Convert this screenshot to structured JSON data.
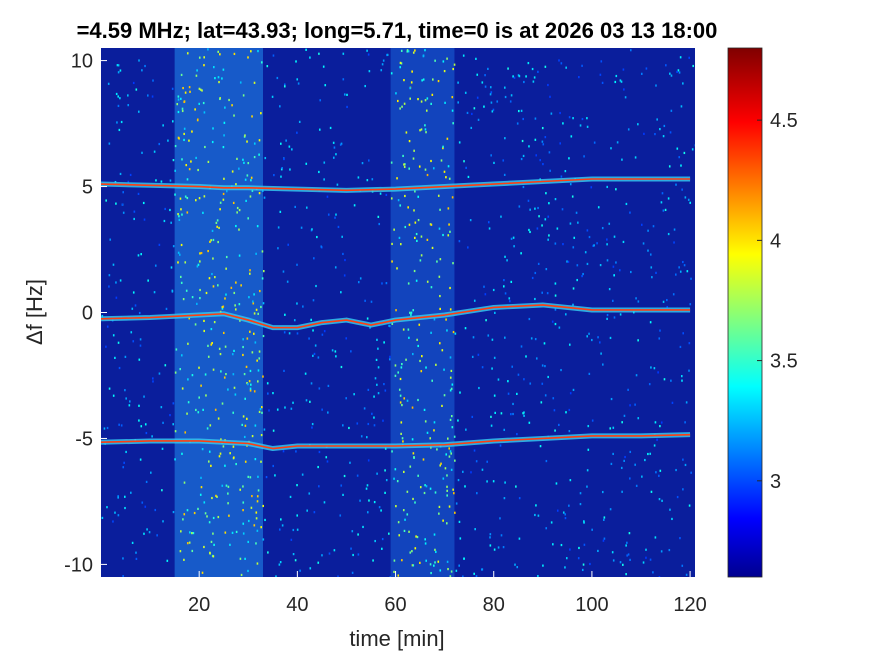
{
  "chart_data": {
    "type": "heatmap",
    "title": "=4.59 MHz;  lat=43.93; long=5.71, time=0 is at 2026 03 13 18:00",
    "xlabel": "time [min]",
    "ylabel": "Δf [Hz]",
    "xlim": [
      0,
      121
    ],
    "ylim": [
      -10.5,
      10.5
    ],
    "x_ticks": [
      20,
      40,
      60,
      80,
      100,
      120
    ],
    "y_ticks": [
      -10,
      -5,
      0,
      5,
      10
    ],
    "grid": false,
    "colormap": "jet",
    "colorbar": {
      "range": [
        2.6,
        4.8
      ],
      "ticks": [
        3,
        3.5,
        4,
        4.5
      ],
      "tick_labels": [
        "3",
        "3.5",
        "4",
        "4.5"
      ]
    },
    "background_color": "#0a1e9c",
    "bright_time_bands_min": [
      [
        15,
        33
      ],
      [
        59,
        72
      ]
    ],
    "traces": [
      {
        "time_min": [
          0,
          10,
          20,
          25,
          30,
          40,
          50,
          60,
          70,
          80,
          90,
          100,
          110,
          120
        ],
        "df_hz": [
          5.1,
          5.05,
          5.0,
          4.95,
          4.95,
          4.9,
          4.85,
          4.9,
          5.0,
          5.1,
          5.2,
          5.3,
          5.3,
          5.3
        ]
      },
      {
        "time_min": [
          0,
          10,
          20,
          25,
          30,
          35,
          40,
          45,
          50,
          55,
          60,
          70,
          80,
          90,
          100,
          110,
          120
        ],
        "df_hz": [
          -0.25,
          -0.2,
          -0.1,
          -0.05,
          -0.3,
          -0.6,
          -0.6,
          -0.4,
          -0.3,
          -0.5,
          -0.3,
          -0.1,
          0.2,
          0.3,
          0.1,
          0.1,
          0.1
        ]
      },
      {
        "time_min": [
          0,
          10,
          20,
          30,
          35,
          40,
          50,
          60,
          70,
          80,
          90,
          100,
          110,
          120
        ],
        "df_hz": [
          -5.15,
          -5.1,
          -5.1,
          -5.2,
          -5.4,
          -5.3,
          -5.3,
          -5.3,
          -5.25,
          -5.1,
          -5.0,
          -4.9,
          -4.9,
          -4.85
        ]
      }
    ]
  }
}
